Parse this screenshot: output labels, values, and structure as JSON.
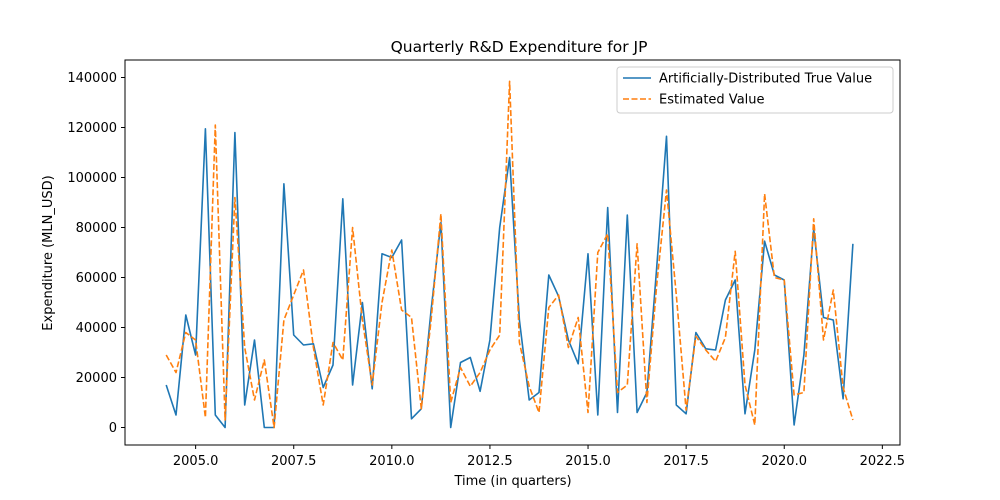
{
  "chart_data": {
    "type": "line",
    "title": "Quarterly R&D Expenditure for JP",
    "xlabel": "Time (in quarters)",
    "ylabel": "Expenditure (MLN_USD)",
    "xlim": [
      2003.2,
      2022.95
    ],
    "ylim": [
      -7000,
      147000
    ],
    "x_ticks": [
      2005.0,
      2007.5,
      2010.0,
      2012.5,
      2015.0,
      2017.5,
      2020.0,
      2022.5
    ],
    "x_tick_labels": [
      "2005.0",
      "2007.5",
      "2010.0",
      "2012.5",
      "2015.0",
      "2017.5",
      "2020.0",
      "2022.5"
    ],
    "y_ticks": [
      0,
      20000,
      40000,
      60000,
      80000,
      100000,
      120000,
      140000
    ],
    "y_tick_labels": [
      "0",
      "20000",
      "40000",
      "60000",
      "80000",
      "100000",
      "120000",
      "140000"
    ],
    "grid": false,
    "legend_position": "top-right",
    "x": [
      2004.25,
      2004.5,
      2004.75,
      2005.0,
      2005.25,
      2005.5,
      2005.75,
      2006.0,
      2006.25,
      2006.5,
      2006.75,
      2007.0,
      2007.25,
      2007.5,
      2007.75,
      2008.0,
      2008.25,
      2008.5,
      2008.75,
      2009.0,
      2009.25,
      2009.5,
      2009.75,
      2010.0,
      2010.25,
      2010.5,
      2010.75,
      2011.0,
      2011.25,
      2011.5,
      2011.75,
      2012.0,
      2012.25,
      2012.5,
      2012.75,
      2013.0,
      2013.25,
      2013.5,
      2013.75,
      2014.0,
      2014.25,
      2014.5,
      2014.75,
      2015.0,
      2015.25,
      2015.5,
      2015.75,
      2016.0,
      2016.25,
      2016.5,
      2016.75,
      2017.0,
      2017.25,
      2017.5,
      2017.75,
      2018.0,
      2018.25,
      2018.5,
      2018.75,
      2019.0,
      2019.25,
      2019.5,
      2019.75,
      2020.0,
      2020.25,
      2020.5,
      2020.75,
      2021.0,
      2021.25,
      2021.5,
      2021.75
    ],
    "series": [
      {
        "name": "Artificially-Distributed True Value",
        "color": "#1f77b4",
        "style": "solid",
        "values": [
          17000,
          5000,
          45000,
          29000,
          119500,
          5000,
          0,
          118000,
          9000,
          35000,
          0,
          0,
          97500,
          37000,
          33000,
          33500,
          16000,
          25000,
          91500,
          17000,
          50000,
          15500,
          69500,
          68000,
          75000,
          3500,
          7500,
          47000,
          82000,
          0,
          26000,
          28000,
          14500,
          35000,
          80000,
          108000,
          43000,
          11000,
          14000,
          61000,
          52500,
          35000,
          25500,
          69500,
          5000,
          88000,
          6000,
          85000,
          6000,
          14000,
          64000,
          116500,
          9000,
          5500,
          38000,
          31500,
          31000,
          51000,
          59000,
          5500,
          31000,
          74500,
          61000,
          59000,
          1000,
          29000,
          79500,
          44000,
          43000,
          11500,
          73500
        ]
      },
      {
        "name": "Estimated Value",
        "color": "#ff7f0e",
        "style": "dashed",
        "values": [
          29000,
          22000,
          38000,
          35000,
          4000,
          121000,
          3000,
          92000,
          32000,
          11000,
          27000,
          0,
          43000,
          53000,
          63000,
          32000,
          9000,
          34000,
          27000,
          80000,
          43000,
          17000,
          50000,
          71000,
          47000,
          44000,
          7500,
          43000,
          85500,
          10000,
          24000,
          16500,
          22000,
          31000,
          37000,
          138500,
          34000,
          16500,
          6000,
          48000,
          53000,
          32000,
          44000,
          6000,
          70000,
          77500,
          14000,
          17000,
          73500,
          10000,
          57000,
          95000,
          53000,
          7000,
          36500,
          31000,
          26500,
          36000,
          70500,
          17000,
          1000,
          93500,
          60000,
          59000,
          13000,
          14000,
          83500,
          35000,
          55000,
          16000,
          3000
        ]
      }
    ]
  }
}
